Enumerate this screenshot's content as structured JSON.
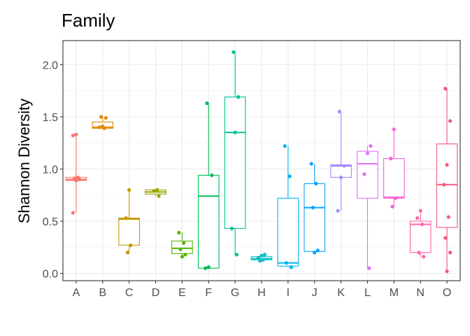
{
  "chart_data": {
    "type": "box",
    "title": "Family",
    "xlabel": "",
    "ylabel": "Shannon Diversity",
    "ylim": [
      -0.07,
      2.23
    ],
    "yticks": [
      "0.0",
      "0.5",
      "1.0",
      "1.5",
      "2.0"
    ],
    "ytick_values": [
      0.0,
      0.5,
      1.0,
      1.5,
      2.0
    ],
    "grid": true,
    "legend": "none",
    "categories": [
      "A",
      "B",
      "C",
      "D",
      "E",
      "F",
      "G",
      "H",
      "I",
      "J",
      "K",
      "L",
      "M",
      "N",
      "O"
    ],
    "colors": [
      "#F8766D",
      "#E38900",
      "#C49A00",
      "#99A800",
      "#53B400",
      "#00BC56",
      "#00C094",
      "#00BFC4",
      "#00B6EB",
      "#06A4FF",
      "#A58AFF",
      "#DF70F8",
      "#FB61D7",
      "#FF66A8",
      "#F2587A"
    ],
    "boxes": [
      {
        "category": "A",
        "min": 0.58,
        "q1": 0.89,
        "median": 0.9,
        "q3": 0.92,
        "max": 1.33,
        "points": [
          0.58,
          0.89,
          0.9,
          0.91,
          0.92,
          1.32,
          1.33
        ]
      },
      {
        "category": "B",
        "min": 1.39,
        "q1": 1.39,
        "median": 1.4,
        "q3": 1.45,
        "max": 1.5,
        "points": [
          1.39,
          1.4,
          1.41,
          1.49,
          1.5
        ]
      },
      {
        "category": "C",
        "min": 0.2,
        "q1": 0.27,
        "median": 0.52,
        "q3": 0.53,
        "max": 0.8,
        "points": [
          0.2,
          0.27,
          0.53,
          0.8
        ]
      },
      {
        "category": "D",
        "min": 0.74,
        "q1": 0.76,
        "median": 0.78,
        "q3": 0.8,
        "max": 0.8,
        "points": [
          0.74,
          0.79,
          0.8
        ]
      },
      {
        "category": "E",
        "min": 0.16,
        "q1": 0.19,
        "median": 0.24,
        "q3": 0.31,
        "max": 0.39,
        "points": [
          0.16,
          0.18,
          0.23,
          0.29,
          0.39
        ]
      },
      {
        "category": "F",
        "min": 0.05,
        "q1": 0.05,
        "median": 0.74,
        "q3": 0.94,
        "max": 1.63,
        "points": [
          0.05,
          0.06,
          0.94,
          1.63
        ]
      },
      {
        "category": "G",
        "min": 0.18,
        "q1": 0.43,
        "median": 1.35,
        "q3": 1.69,
        "max": 2.12,
        "points": [
          0.18,
          0.43,
          1.35,
          1.69,
          2.12
        ]
      },
      {
        "category": "H",
        "min": 0.12,
        "q1": 0.13,
        "median": 0.14,
        "q3": 0.16,
        "max": 0.18,
        "points": [
          0.12,
          0.13,
          0.15,
          0.17,
          0.18
        ]
      },
      {
        "category": "I",
        "min": 0.06,
        "q1": 0.07,
        "median": 0.1,
        "q3": 0.72,
        "max": 1.22,
        "points": [
          0.06,
          0.1,
          0.93,
          1.22
        ]
      },
      {
        "category": "J",
        "min": 0.2,
        "q1": 0.21,
        "median": 0.63,
        "q3": 0.86,
        "max": 1.05,
        "points": [
          0.2,
          0.22,
          0.63,
          0.86,
          1.05
        ]
      },
      {
        "category": "K",
        "min": 0.6,
        "q1": 0.92,
        "median": 1.03,
        "q3": 1.04,
        "max": 1.55,
        "points": [
          0.6,
          0.92,
          1.03,
          1.55
        ]
      },
      {
        "category": "L",
        "min": 0.05,
        "q1": 0.72,
        "median": 1.05,
        "q3": 1.17,
        "max": 1.22,
        "points": [
          0.05,
          0.95,
          1.15,
          1.22
        ]
      },
      {
        "category": "M",
        "min": 0.64,
        "q1": 0.72,
        "median": 0.73,
        "q3": 1.1,
        "max": 1.38,
        "points": [
          0.64,
          0.72,
          1.1,
          1.38
        ]
      },
      {
        "category": "N",
        "min": 0.16,
        "q1": 0.2,
        "median": 0.47,
        "q3": 0.5,
        "max": 0.6,
        "points": [
          0.16,
          0.2,
          0.47,
          0.53,
          0.6
        ]
      },
      {
        "category": "O",
        "min": 0.02,
        "q1": 0.44,
        "median": 0.85,
        "q3": 1.24,
        "max": 1.77,
        "points": [
          0.02,
          0.2,
          0.34,
          0.54,
          0.85,
          1.04,
          1.46,
          1.77
        ]
      }
    ]
  }
}
